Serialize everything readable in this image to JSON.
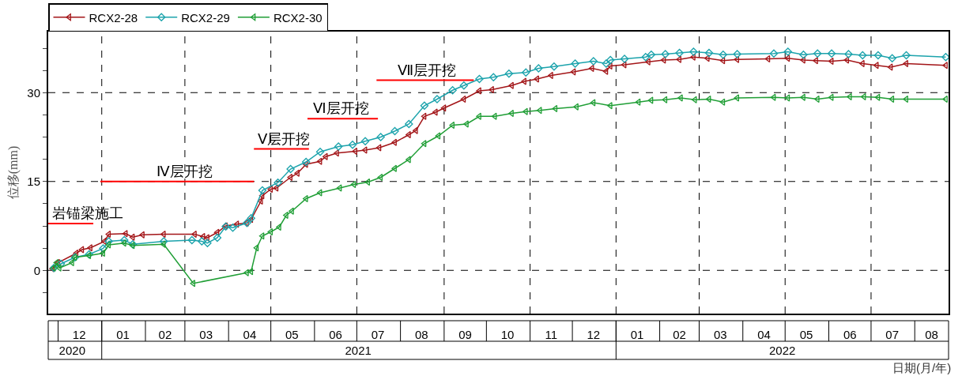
{
  "chart_data": {
    "type": "line",
    "xlabel": "日期(月/年)",
    "ylabel": "位移(mm)",
    "xlim": [
      "2020-11-24",
      "2022-08-25"
    ],
    "xticks": [
      {
        "value": "2020-12-16",
        "label": "12"
      },
      {
        "value": "2021-01-16",
        "label": "01"
      },
      {
        "value": "2021-02-15",
        "label": "02"
      },
      {
        "value": "2021-03-16",
        "label": "03"
      },
      {
        "value": "2021-04-16",
        "label": "04"
      },
      {
        "value": "2021-05-16",
        "label": "05"
      },
      {
        "value": "2021-06-16",
        "label": "06"
      },
      {
        "value": "2021-07-16",
        "label": "07"
      },
      {
        "value": "2021-08-16",
        "label": "08"
      },
      {
        "value": "2021-09-16",
        "label": "09"
      },
      {
        "value": "2021-10-16",
        "label": "10"
      },
      {
        "value": "2021-11-16",
        "label": "11"
      },
      {
        "value": "2021-12-16",
        "label": "12"
      },
      {
        "value": "2022-01-16",
        "label": "01"
      },
      {
        "value": "2022-02-15",
        "label": "02"
      },
      {
        "value": "2022-03-16",
        "label": "03"
      },
      {
        "value": "2022-04-16",
        "label": "04"
      },
      {
        "value": "2022-05-16",
        "label": "05"
      },
      {
        "value": "2022-06-16",
        "label": "06"
      },
      {
        "value": "2022-07-16",
        "label": "07"
      },
      {
        "value": "2022-08-13",
        "label": "08"
      }
    ],
    "x2lim": [
      "2020-11-24",
      "2022-08-25"
    ],
    "x2ticks": [
      {
        "value": "2020-12-11",
        "label": "2020"
      },
      {
        "value": "2021-07-02",
        "label": "2021"
      },
      {
        "value": "2022-04-29",
        "label": "2022"
      }
    ],
    "ylim": [
      -7.3,
      40.3
    ],
    "yticks": [
      {
        "value": -3.75,
        "label": null
      },
      0,
      {
        "value": 3.75,
        "label": null
      },
      {
        "value": 7.5,
        "label": null
      },
      {
        "value": 11.25,
        "label": null
      },
      15,
      {
        "value": 18.75,
        "label": null
      },
      {
        "value": 22.5,
        "label": null
      },
      {
        "value": 26.25,
        "label": null
      },
      30,
      {
        "value": 33.75,
        "label": null
      },
      {
        "value": 37.5,
        "label": null
      }
    ],
    "grid": "y",
    "legend": "top left",
    "line_style": "solid",
    "ref_lines": [
      {
        "axis": "x",
        "value": "2021-01-01",
        "color": "#000000",
        "line_style": "dashed"
      },
      {
        "axis": "x",
        "value": "2021-03-01",
        "color": "#000000",
        "line_style": "dashed"
      },
      {
        "axis": "x",
        "value": "2021-05-01",
        "color": "#000000",
        "line_style": "dashed"
      },
      {
        "axis": "x",
        "value": "2021-07-01",
        "color": "#000000",
        "line_style": "dashed"
      },
      {
        "axis": "x",
        "value": "2021-09-01",
        "color": "#000000",
        "line_style": "dashed"
      },
      {
        "axis": "x",
        "value": "2021-11-01",
        "color": "#000000",
        "line_style": "dashed"
      },
      {
        "axis": "x",
        "value": "2022-01-01",
        "color": "#000000",
        "line_style": "dashed"
      },
      {
        "axis": "x",
        "value": "2022-03-01",
        "color": "#000000",
        "line_style": "dashed"
      },
      {
        "axis": "x",
        "value": "2022-05-01",
        "color": "#000000",
        "line_style": "dashed"
      },
      {
        "axis": "x",
        "value": "2022-07-01",
        "color": "#000000",
        "line_style": "dashed"
      }
    ],
    "annotations": [
      {
        "text": "岩锚梁施工",
        "x": "2020-12-22",
        "y": 7.9
      },
      {
        "text": "Ⅳ层开挖",
        "x": "2021-03-01",
        "y": 15
      },
      {
        "text": "Ⅴ层开挖",
        "x": "2021-05-10",
        "y": 20.5
      },
      {
        "text": "Ⅵ层开挖",
        "x": "2021-06-20",
        "y": 25.6
      },
      {
        "text": "Ⅶ层开挖",
        "x": "2021-08-20",
        "y": 32.1
      }
    ],
    "series": [
      {
        "name": "RCX2-28",
        "color": "#a31518",
        "marker": "triangle",
        "x": [
          "2020-11-27",
          "2020-12-01",
          "2020-12-14",
          "2020-12-18",
          "2020-12-24",
          "2021-01-03",
          "2021-01-06",
          "2021-01-18",
          "2021-01-23",
          "2021-01-30",
          "2021-02-14",
          "2021-03-08",
          "2021-03-14",
          "2021-03-17",
          "2021-03-24",
          "2021-03-30",
          "2021-04-07",
          "2021-04-14",
          "2021-04-17",
          "2021-04-24",
          "2021-04-25",
          "2021-05-01",
          "2021-05-05",
          "2021-05-15",
          "2021-05-20",
          "2021-05-26",
          "2021-06-05",
          "2021-06-09",
          "2021-06-17",
          "2021-06-30",
          "2021-07-07",
          "2021-07-17",
          "2021-07-28",
          "2021-08-07",
          "2021-08-12",
          "2021-08-18",
          "2021-08-26",
          "2021-09-01",
          "2021-09-15",
          "2021-09-26",
          "2021-10-05",
          "2021-10-19",
          "2021-10-28",
          "2021-11-06",
          "2021-11-16",
          "2021-12-02",
          "2021-12-15",
          "2021-12-25",
          "2021-12-28",
          "2022-01-07",
          "2022-01-24",
          "2022-02-04",
          "2022-02-15",
          "2022-02-25",
          "2022-03-07",
          "2022-03-18",
          "2022-03-28",
          "2022-04-19",
          "2022-05-03",
          "2022-05-14",
          "2022-05-23",
          "2022-06-03",
          "2022-06-14",
          "2022-06-25",
          "2022-07-05",
          "2022-07-15",
          "2022-07-26",
          "2022-08-23"
        ],
        "values": [
          0.3,
          1.3,
          2.9,
          3.5,
          3.8,
          4.9,
          6.1,
          6.2,
          5.6,
          6.0,
          6.1,
          6.1,
          5.7,
          5.5,
          6.4,
          7.5,
          7.8,
          8.0,
          8.6,
          11.7,
          12.6,
          13.7,
          13.9,
          15.7,
          16.4,
          17.9,
          18.4,
          19.2,
          19.8,
          20.1,
          20.3,
          20.7,
          21.6,
          22.9,
          23.6,
          26.0,
          26.7,
          27.4,
          28.9,
          30.3,
          30.5,
          31.2,
          31.9,
          32.3,
          32.9,
          33.5,
          34.1,
          33.6,
          34.5,
          34.7,
          35.2,
          35.5,
          35.6,
          36.0,
          35.8,
          35.4,
          35.6,
          35.7,
          35.8,
          35.5,
          35.4,
          35.3,
          35.5,
          34.9,
          34.6,
          34.3,
          34.9,
          34.6
        ]
      },
      {
        "name": "RCX2-29",
        "color": "#1ca3ac",
        "marker": "diamond",
        "x": [
          "2020-11-28",
          "2020-12-03",
          "2020-12-13",
          "2020-12-23",
          "2021-01-02",
          "2021-01-06",
          "2021-01-17",
          "2021-01-23",
          "2021-02-14",
          "2021-03-06",
          "2021-03-13",
          "2021-03-17",
          "2021-03-24",
          "2021-03-30",
          "2021-04-04",
          "2021-04-14",
          "2021-04-17",
          "2021-04-25",
          "2021-05-06",
          "2021-05-15",
          "2021-05-26",
          "2021-06-05",
          "2021-06-18",
          "2021-06-28",
          "2021-07-07",
          "2021-07-18",
          "2021-07-28",
          "2021-08-07",
          "2021-08-18",
          "2021-08-27",
          "2021-09-07",
          "2021-09-15",
          "2021-09-26",
          "2021-10-06",
          "2021-10-17",
          "2021-10-29",
          "2021-11-07",
          "2021-11-18",
          "2021-12-03",
          "2021-12-16",
          "2021-12-25",
          "2021-12-28",
          "2022-01-07",
          "2022-01-22",
          "2022-01-26",
          "2022-02-05",
          "2022-02-15",
          "2022-02-25",
          "2022-03-08",
          "2022-03-18",
          "2022-03-28",
          "2022-04-23",
          "2022-05-03",
          "2022-05-14",
          "2022-05-24",
          "2022-06-03",
          "2022-06-15",
          "2022-06-25",
          "2022-07-06",
          "2022-07-16",
          "2022-07-26",
          "2022-08-23"
        ],
        "values": [
          0.4,
          1.1,
          2.2,
          2.7,
          3.7,
          4.9,
          5.1,
          4.4,
          4.9,
          5.1,
          4.9,
          4.6,
          5.5,
          7.4,
          7.2,
          8.0,
          8.8,
          13.5,
          14.8,
          17.1,
          18.3,
          20.0,
          20.9,
          21.2,
          21.8,
          22.5,
          23.5,
          24.7,
          27.8,
          28.9,
          30.4,
          31.2,
          32.3,
          32.6,
          33.2,
          33.4,
          34.1,
          34.4,
          34.9,
          35.3,
          34.9,
          35.5,
          35.7,
          36.0,
          36.4,
          36.5,
          36.7,
          36.9,
          36.7,
          36.4,
          36.5,
          36.6,
          36.9,
          36.4,
          36.6,
          36.6,
          36.5,
          36.3,
          36.3,
          35.8,
          36.3,
          36.0
        ]
      },
      {
        "name": "RCX2-30",
        "color": "#1f9e35",
        "marker": "triangle",
        "x": [
          "2020-11-28",
          "2020-11-30",
          "2020-12-02",
          "2020-12-11",
          "2020-12-13",
          "2020-12-23",
          "2021-01-02",
          "2021-01-06",
          "2021-01-17",
          "2021-01-23",
          "2021-02-14",
          "2021-03-07",
          "2021-04-14",
          "2021-04-17",
          "2021-04-21",
          "2021-04-25",
          "2021-05-01",
          "2021-05-07",
          "2021-05-12",
          "2021-05-16",
          "2021-05-26",
          "2021-06-05",
          "2021-06-19",
          "2021-06-29",
          "2021-07-09",
          "2021-07-18",
          "2021-07-28",
          "2021-08-07",
          "2021-08-18",
          "2021-08-28",
          "2021-09-07",
          "2021-09-17",
          "2021-09-26",
          "2021-10-07",
          "2021-10-19",
          "2021-10-29",
          "2021-11-08",
          "2021-11-19",
          "2021-12-04",
          "2021-12-16",
          "2021-12-28",
          "2022-01-17",
          "2022-01-26",
          "2022-02-05",
          "2022-02-16",
          "2022-02-26",
          "2022-03-08",
          "2022-03-18",
          "2022-03-28",
          "2022-04-23",
          "2022-05-03",
          "2022-05-14",
          "2022-05-24",
          "2022-06-03",
          "2022-06-16",
          "2022-06-26",
          "2022-07-06",
          "2022-07-16",
          "2022-07-26",
          "2022-08-23"
        ],
        "values": [
          0.4,
          1.3,
          0.4,
          1.3,
          2.2,
          2.5,
          2.9,
          4.3,
          4.6,
          4.2,
          4.4,
          -2.2,
          -0.4,
          -0.2,
          3.8,
          5.8,
          6.5,
          7.3,
          9.3,
          10.0,
          12.1,
          13.1,
          13.9,
          14.5,
          14.9,
          15.7,
          17.2,
          18.7,
          21.4,
          22.7,
          24.5,
          24.7,
          26.0,
          26.0,
          26.5,
          26.8,
          27.0,
          27.3,
          27.6,
          28.3,
          27.8,
          28.4,
          28.7,
          28.8,
          29.1,
          28.8,
          28.9,
          28.4,
          29.1,
          29.2,
          29.1,
          29.2,
          28.9,
          29.2,
          29.3,
          29.3,
          29.2,
          28.9,
          28.9,
          28.9
        ]
      },
      {
        "type": "line",
        "color": "#ff0000",
        "marker": "none",
        "x": [
          "2020-11-24",
          "2020-12-26"
        ],
        "values": [
          7.9,
          7.9
        ]
      },
      {
        "type": "line",
        "color": "#ff0000",
        "marker": "none",
        "x": [
          "2020-12-31",
          "2021-04-19"
        ],
        "values": [
          15,
          15
        ]
      },
      {
        "type": "line",
        "color": "#ff0000",
        "marker": "none",
        "x": [
          "2021-04-19",
          "2021-05-28"
        ],
        "values": [
          20.5,
          20.5
        ]
      },
      {
        "type": "line",
        "color": "#ff0000",
        "marker": "none",
        "x": [
          "2021-05-27",
          "2021-07-16"
        ],
        "values": [
          25.6,
          25.6
        ]
      },
      {
        "type": "line",
        "color": "#ff0000",
        "marker": "none",
        "x": [
          "2021-07-15",
          "2021-09-22"
        ],
        "values": [
          32.1,
          32.1
        ]
      }
    ]
  }
}
